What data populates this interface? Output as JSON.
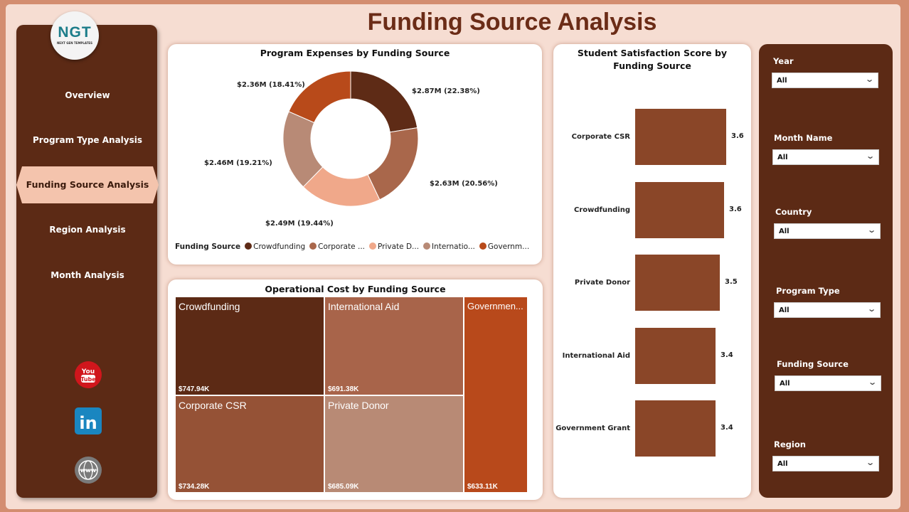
{
  "header": {
    "title": "Funding Source Analysis"
  },
  "logo": {
    "text": "NGT",
    "subtitle": "NEXT GEN TEMPLATES"
  },
  "nav": {
    "items": [
      {
        "label": "Overview"
      },
      {
        "label": "Program Type Analysis"
      },
      {
        "label": "Funding Source Analysis",
        "active": true
      },
      {
        "label": "Region Analysis"
      },
      {
        "label": "Month Analysis"
      }
    ]
  },
  "social": {
    "icons": [
      "youtube-icon",
      "linkedin-icon",
      "website-globe-icon"
    ]
  },
  "chart_data": [
    {
      "type": "pie",
      "variant": "donut",
      "title": "Program Expenses by Funding Source",
      "legend_title": "Funding Source",
      "legend_position": "bottom",
      "legend_labels": [
        "Crowdfunding",
        "Corporate ...",
        "Private D...",
        "Internatio...",
        "Governm..."
      ],
      "categories": [
        "Crowdfunding",
        "Corporate CSR",
        "Private Donor",
        "International Aid",
        "Government Grant"
      ],
      "values": [
        2.87,
        2.63,
        2.49,
        2.46,
        2.36
      ],
      "unit": "$M",
      "percents": [
        22.38,
        20.56,
        19.44,
        19.21,
        18.41
      ],
      "data_labels": [
        "$2.87M (22.38%)",
        "$2.63M (20.56%)",
        "$2.49M (19.44%)",
        "$2.46M (19.21%)",
        "$2.36M (18.41%)"
      ],
      "colors": [
        "#5e2b16",
        "#a9674b",
        "#f0a88a",
        "#b88a76",
        "#b84a1a"
      ]
    },
    {
      "type": "treemap",
      "title": "Operational Cost by Funding Source",
      "categories": [
        "Crowdfunding",
        "International Aid",
        "Governmen...",
        "Corporate CSR",
        "Private Donor"
      ],
      "values": [
        747.94,
        691.38,
        633.11,
        734.28,
        685.09
      ],
      "unit": "$K",
      "data_labels": [
        "$747.94K",
        "$691.38K",
        "$633.11K",
        "$734.28K",
        "$685.09K"
      ],
      "colors": [
        "#5c2a15",
        "#a8644a",
        "#b8491b",
        "#955236",
        "#b88a75"
      ]
    },
    {
      "type": "bar",
      "orientation": "horizontal",
      "title": "Student Satisfaction Score by Funding Source",
      "categories": [
        "Corporate CSR",
        "Crowdfunding",
        "Private Donor",
        "International Aid",
        "Government Grant"
      ],
      "values": [
        3.6,
        3.6,
        3.5,
        3.4,
        3.4
      ],
      "data_labels": [
        "3.6",
        "3.6",
        "3.5",
        "3.4",
        "3.4"
      ],
      "color": "#8a4628"
    }
  ],
  "filters": [
    {
      "label": "Year",
      "value": "All"
    },
    {
      "label": "Month Name",
      "value": "All"
    },
    {
      "label": "Country",
      "value": "All"
    },
    {
      "label": "Program Type",
      "value": "All"
    },
    {
      "label": "Funding Source",
      "value": "All"
    },
    {
      "label": "Region",
      "value": "All"
    }
  ]
}
